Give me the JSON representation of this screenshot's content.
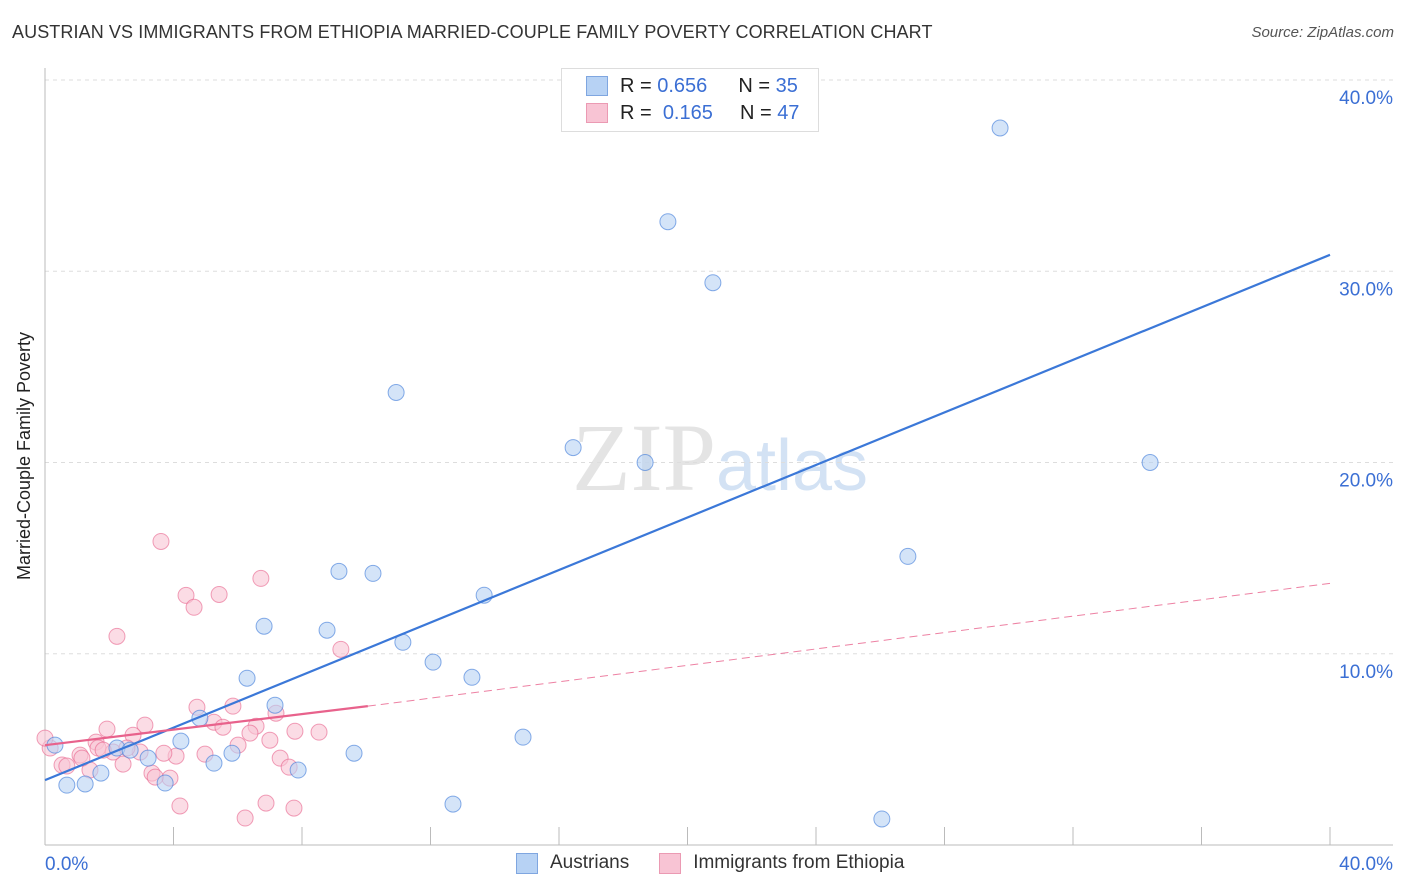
{
  "title": "AUSTRIAN VS IMMIGRANTS FROM ETHIOPIA MARRIED-COUPLE FAMILY POVERTY CORRELATION CHART",
  "source": "Source: ZipAtlas.com",
  "watermark": "ZIPatlas",
  "legend": {
    "rows": [
      {
        "r_label": "R =",
        "r": "0.656",
        "n_label": "N =",
        "n": "35"
      },
      {
        "r_label": "R =",
        "r": "0.165",
        "n_label": "N =",
        "n": "47"
      }
    ]
  },
  "colors": {
    "blue": "#3b78d8",
    "blue_fill": "#b7d2f4",
    "pink": "#e8628c",
    "pink_fill": "#f8c4d4",
    "accent_text": "#3b6fd4"
  },
  "chart_data": {
    "type": "scatter",
    "title": "AUSTRIAN VS IMMIGRANTS FROM ETHIOPIA MARRIED-COUPLE FAMILY POVERTY CORRELATION CHART",
    "xlabel": "",
    "ylabel": "Married-Couple Family Poverty",
    "xlim": [
      0,
      40
    ],
    "ylim": [
      0,
      40
    ],
    "x_tick_labels": [
      "0.0%",
      "40.0%"
    ],
    "y_ticks": [
      10,
      20,
      30,
      40
    ],
    "y_tick_labels": [
      "10.0%",
      "20.0%",
      "30.0%",
      "40.0%"
    ],
    "grid": true,
    "legend_placement": "bottom",
    "series": [
      {
        "name": "Austrians",
        "R": 0.656,
        "N": 35,
        "trend": [
          [
            0,
            3.39
          ],
          [
            40,
            30.86
          ]
        ],
        "points": [
          [
            29.73,
            37.49
          ],
          [
            19.39,
            32.59
          ],
          [
            20.79,
            29.4
          ],
          [
            10.93,
            23.66
          ],
          [
            16.44,
            20.78
          ],
          [
            18.68,
            20.0
          ],
          [
            34.4,
            20.0
          ],
          [
            26.86,
            15.09
          ],
          [
            9.15,
            14.31
          ],
          [
            10.21,
            14.2
          ],
          [
            13.67,
            13.06
          ],
          [
            6.82,
            11.44
          ],
          [
            8.78,
            11.23
          ],
          [
            11.14,
            10.6
          ],
          [
            12.08,
            9.56
          ],
          [
            13.29,
            8.77
          ],
          [
            6.29,
            8.72
          ],
          [
            7.16,
            7.31
          ],
          [
            4.82,
            6.63
          ],
          [
            4.23,
            5.43
          ],
          [
            14.88,
            5.64
          ],
          [
            9.62,
            4.8
          ],
          [
            5.82,
            4.8
          ],
          [
            5.26,
            4.28
          ],
          [
            7.88,
            3.92
          ],
          [
            1.74,
            3.76
          ],
          [
            0.68,
            3.13
          ],
          [
            1.25,
            3.19
          ],
          [
            3.74,
            3.24
          ],
          [
            12.7,
            2.14
          ],
          [
            26.05,
            1.36
          ],
          [
            0.31,
            5.22
          ],
          [
            2.24,
            5.07
          ],
          [
            3.21,
            4.54
          ],
          [
            2.65,
            4.96
          ]
        ]
      },
      {
        "name": "Immigrants from Ethiopia",
        "R": 0.165,
        "N": 47,
        "trend": [
          [
            0,
            5.22
          ],
          [
            10.05,
            7.26
          ],
          [
            40,
            13.68
          ]
        ],
        "points": [
          [
            3.61,
            15.87
          ],
          [
            2.24,
            10.91
          ],
          [
            4.39,
            13.05
          ],
          [
            4.64,
            12.43
          ],
          [
            5.42,
            13.1
          ],
          [
            6.72,
            13.94
          ],
          [
            9.21,
            10.23
          ],
          [
            4.73,
            7.2
          ],
          [
            5.85,
            7.26
          ],
          [
            5.26,
            6.42
          ],
          [
            5.54,
            6.16
          ],
          [
            3.11,
            6.27
          ],
          [
            1.93,
            6.06
          ],
          [
            2.74,
            5.74
          ],
          [
            7.19,
            6.89
          ],
          [
            6.57,
            6.21
          ],
          [
            6.38,
            5.85
          ],
          [
            7.78,
            5.95
          ],
          [
            8.53,
            5.9
          ],
          [
            6.01,
            5.22
          ],
          [
            7.0,
            5.48
          ],
          [
            4.98,
            4.75
          ],
          [
            4.08,
            4.65
          ],
          [
            3.7,
            4.8
          ],
          [
            1.59,
            5.38
          ],
          [
            1.65,
            5.07
          ],
          [
            1.09,
            4.7
          ],
          [
            0.16,
            5.07
          ],
          [
            0.53,
            4.18
          ],
          [
            0.68,
            4.13
          ],
          [
            3.33,
            3.76
          ],
          [
            3.89,
            3.5
          ],
          [
            3.43,
            3.55
          ],
          [
            1.4,
            3.92
          ],
          [
            2.43,
            4.23
          ],
          [
            2.96,
            4.86
          ],
          [
            2.12,
            4.86
          ],
          [
            1.15,
            4.54
          ],
          [
            7.32,
            4.54
          ],
          [
            7.6,
            4.07
          ],
          [
            4.2,
            2.04
          ],
          [
            6.88,
            2.19
          ],
          [
            6.23,
            1.41
          ],
          [
            7.75,
            1.93
          ],
          [
            0,
            5.59
          ],
          [
            1.81,
            4.96
          ],
          [
            2.55,
            5.07
          ]
        ]
      }
    ]
  }
}
